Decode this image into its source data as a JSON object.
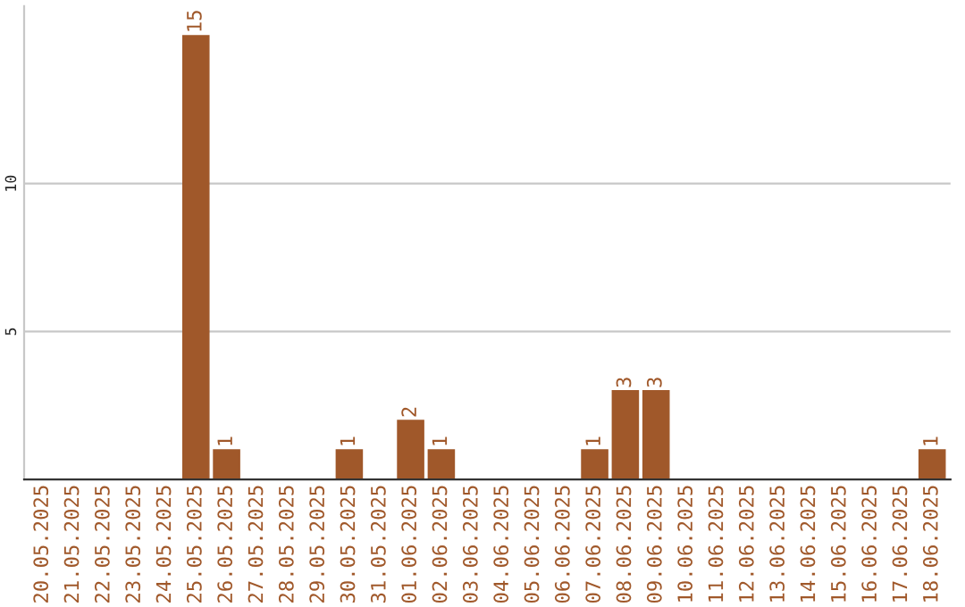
{
  "chart_data": {
    "type": "bar",
    "categories": [
      "20.05.2025",
      "21.05.2025",
      "22.05.2025",
      "23.05.2025",
      "24.05.2025",
      "25.05.2025",
      "26.05.2025",
      "27.05.2025",
      "28.05.2025",
      "29.05.2025",
      "30.05.2025",
      "31.05.2025",
      "01.06.2025",
      "02.06.2025",
      "03.06.2025",
      "04.06.2025",
      "05.06.2025",
      "06.06.2025",
      "07.06.2025",
      "08.06.2025",
      "09.06.2025",
      "10.06.2025",
      "11.06.2025",
      "12.06.2025",
      "13.06.2025",
      "14.06.2025",
      "15.06.2025",
      "16.06.2025",
      "17.06.2025",
      "18.06.2025"
    ],
    "values": [
      0,
      0,
      0,
      0,
      0,
      15,
      1,
      0,
      0,
      0,
      1,
      0,
      2,
      1,
      0,
      0,
      0,
      0,
      1,
      3,
      3,
      0,
      0,
      0,
      0,
      0,
      0,
      0,
      0,
      1
    ],
    "value_labels": [
      null,
      null,
      null,
      null,
      null,
      "15",
      "1",
      null,
      null,
      null,
      "1",
      null,
      "2",
      "1",
      null,
      null,
      null,
      null,
      "1",
      "3",
      "3",
      null,
      null,
      null,
      null,
      null,
      null,
      null,
      null,
      "1"
    ],
    "color": "#a0582a",
    "ylim": [
      0,
      16
    ],
    "yticks": [
      5,
      10
    ],
    "grid": "y"
  }
}
